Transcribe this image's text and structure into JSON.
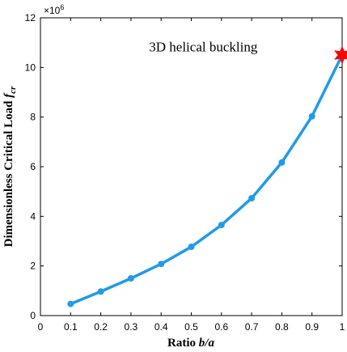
{
  "chart_data": {
    "type": "line",
    "xlabel_text": "Ratio ",
    "xlabel_var": "b/a",
    "ylabel_text": "Dimensionless Critical Load ",
    "ylabel_var": "f",
    "ylabel_sub": "cr",
    "y_multiplier_base": "×10",
    "y_multiplier_exp": "6",
    "xlim": [
      0,
      1
    ],
    "ylim": [
      0,
      12
    ],
    "xticks": [
      0,
      0.1,
      0.2,
      0.3,
      0.4,
      0.5,
      0.6,
      0.7,
      0.8,
      0.9,
      1
    ],
    "xtick_labels": [
      "0",
      "0.1",
      "0.2",
      "0.3",
      "0.4",
      "0.5",
      "0.6",
      "0.7",
      "0.8",
      "0.9",
      "1"
    ],
    "yticks": [
      0,
      2,
      4,
      6,
      8,
      10,
      12
    ],
    "ytick_labels": [
      "0",
      "2",
      "4",
      "6",
      "8",
      "10",
      "12"
    ],
    "grid": false,
    "series": [
      {
        "x": [
          0.1,
          0.2,
          0.3,
          0.4,
          0.5,
          0.6,
          0.7,
          0.8,
          0.9,
          1.0
        ],
        "y": [
          0.47,
          0.97,
          1.5,
          2.08,
          2.77,
          3.65,
          4.73,
          6.17,
          8.03,
          10.5
        ],
        "color": "#1f9be8"
      }
    ],
    "marker_point": {
      "x": 1.0,
      "y": 10.5,
      "shape": "star",
      "color": "#ff0000"
    },
    "annotation": {
      "text": "3D helical buckling",
      "x": 0.36,
      "y": 10.65
    }
  }
}
